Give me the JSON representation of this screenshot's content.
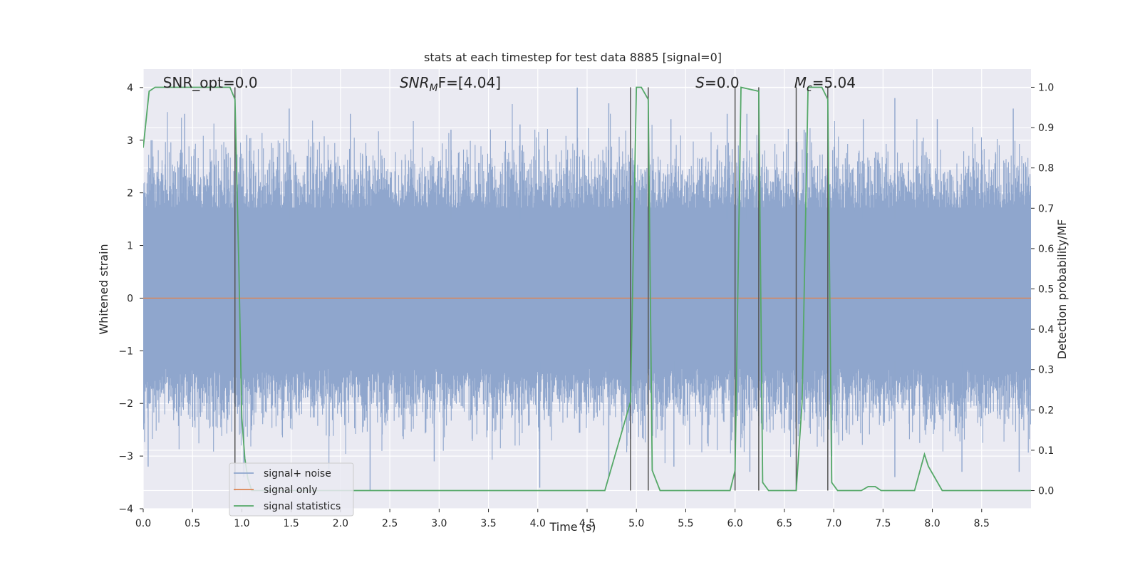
{
  "chart_data": {
    "type": "line",
    "title": "stats at each timestep for test data 8885 [signal=0]",
    "xlabel": "Time (s)",
    "ylabel_left": "Whitened strain",
    "ylabel_right": "Detection probability/MF",
    "xlim": [
      0.0,
      9.0
    ],
    "ylim_left": [
      -4.0,
      4.35
    ],
    "ylim_right": [
      -0.045,
      1.045
    ],
    "xticks": [
      "0.0",
      "0.5",
      "1.0",
      "1.5",
      "2.0",
      "2.5",
      "3.0",
      "3.5",
      "4.0",
      "4.5",
      "5.0",
      "5.5",
      "6.0",
      "6.5",
      "7.0",
      "7.5",
      "8.0",
      "8.5"
    ],
    "yticks_left": [
      "4",
      "3",
      "2",
      "1",
      "0",
      "−1",
      "−2",
      "−3",
      "−4"
    ],
    "yticks_right": [
      "1.0",
      "0.9",
      "0.8",
      "0.7",
      "0.6",
      "0.5",
      "0.4",
      "0.3",
      "0.2",
      "0.1",
      "0.0"
    ],
    "grid": true,
    "legend_position": "lower-left",
    "annotations": [
      {
        "prefix": "SNR_opt=0.0",
        "sub": "",
        "suffix": "",
        "italic": false,
        "x": 0.2
      },
      {
        "prefix": "SNR",
        "sub": "M",
        "suffix": "F=[4.04]",
        "italic": true,
        "x": 2.6
      },
      {
        "prefix": "S",
        "sub": "",
        "suffix": "=0.0",
        "italic": true,
        "x": 5.6
      },
      {
        "prefix": "M",
        "sub": "c",
        "suffix": "=5.04",
        "italic": true,
        "x": 6.6
      }
    ],
    "vlines": [
      0.93,
      4.94,
      5.12,
      6.0,
      6.24,
      6.62,
      6.94
    ],
    "series": [
      {
        "name": "signal+ noise",
        "axis": "left",
        "color": "#8fa6cd",
        "band_lower": -1.35,
        "band_upper": 1.72,
        "approx_range": [
          -3.65,
          4.0
        ],
        "peaks": [
          [
            0.08,
            3.0
          ],
          [
            0.42,
            3.5
          ],
          [
            1.05,
            3.1
          ],
          [
            1.48,
            3.6
          ],
          [
            2.1,
            3.5
          ],
          [
            3.12,
            3.2
          ],
          [
            3.82,
            3.3
          ],
          [
            4.4,
            4.0
          ],
          [
            4.72,
            3.7
          ],
          [
            5.35,
            3.4
          ],
          [
            5.92,
            3.5
          ],
          [
            6.12,
            3.5
          ],
          [
            6.7,
            3.2
          ],
          [
            7.3,
            3.4
          ],
          [
            7.62,
            3.8
          ],
          [
            8.05,
            3.4
          ],
          [
            8.82,
            3.6
          ]
        ],
        "troughs": [
          [
            0.05,
            -3.2
          ],
          [
            1.02,
            -3.4
          ],
          [
            2.3,
            -3.65
          ],
          [
            2.95,
            -3.1
          ],
          [
            4.02,
            -3.6
          ],
          [
            4.72,
            -3.4
          ],
          [
            5.38,
            -3.2
          ],
          [
            6.15,
            -3.3
          ],
          [
            6.98,
            -3.0
          ],
          [
            7.62,
            -3.4
          ],
          [
            8.3,
            -3.3
          ],
          [
            8.88,
            -3.3
          ]
        ]
      },
      {
        "name": "signal only",
        "axis": "left",
        "color": "#dd8452",
        "x": [
          0.0,
          9.0
        ],
        "y": [
          0.0,
          0.0
        ]
      },
      {
        "name": "signal statistics",
        "axis": "right",
        "color": "#55a868",
        "x": [
          0.0,
          0.06,
          0.12,
          0.88,
          0.93,
          0.97,
          1.0,
          1.03,
          1.06,
          1.1,
          2.1,
          4.62,
          4.68,
          4.94,
          5.0,
          5.05,
          5.12,
          5.16,
          5.24,
          5.95,
          6.0,
          6.06,
          6.24,
          6.28,
          6.34,
          6.62,
          6.68,
          6.74,
          6.88,
          6.94,
          6.98,
          7.04,
          7.28,
          7.35,
          7.42,
          7.48,
          7.82,
          7.92,
          7.96,
          8.1,
          9.0
        ],
        "y": [
          0.85,
          0.99,
          1.0,
          1.0,
          0.97,
          0.55,
          0.18,
          0.08,
          0.03,
          0.0,
          0.0,
          0.0,
          0.0,
          0.22,
          1.0,
          1.0,
          0.97,
          0.05,
          0.0,
          0.0,
          0.05,
          1.0,
          0.99,
          0.02,
          0.0,
          0.0,
          0.22,
          1.0,
          1.0,
          0.97,
          0.02,
          0.0,
          0.0,
          0.01,
          0.01,
          0.0,
          0.0,
          0.09,
          0.06,
          0.0,
          0.0
        ]
      }
    ]
  }
}
